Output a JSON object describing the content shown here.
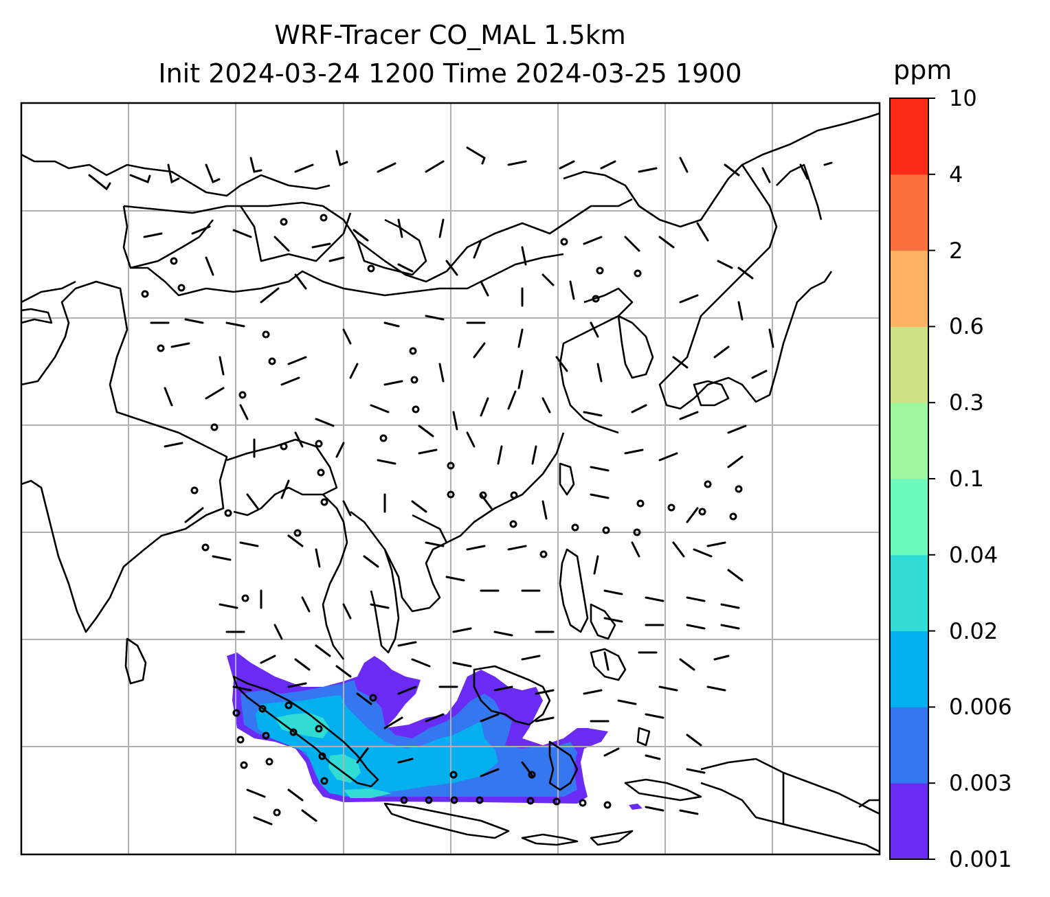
{
  "title": {
    "line1": "WRF-Tracer CO_MAL 1.5km",
    "line2": "Init 2024-03-24 1200 Time 2024-03-25 1900"
  },
  "colorbar": {
    "unit": "ppm",
    "ticks": [
      "0.001",
      "0.003",
      "0.006",
      "0.02",
      "0.04",
      "0.1",
      "0.3",
      "0.6",
      "2",
      "4",
      "10"
    ],
    "colors": [
      "#6a2cf5",
      "#3577f0",
      "#05b0ef",
      "#30dcd4",
      "#6cf9be",
      "#9cf79e",
      "#cfe186",
      "#fdb263",
      "#fd6f3d",
      "#fc2b17"
    ]
  },
  "map": {
    "gridlines": true,
    "gridline_color": "#b0b0b0",
    "coastline_color": "#000000",
    "tracer_colors": {
      "low": "#6a2cf5",
      "mid": "#3577f0",
      "high": "#05b0ef",
      "peak": "#30dcd4"
    }
  }
}
